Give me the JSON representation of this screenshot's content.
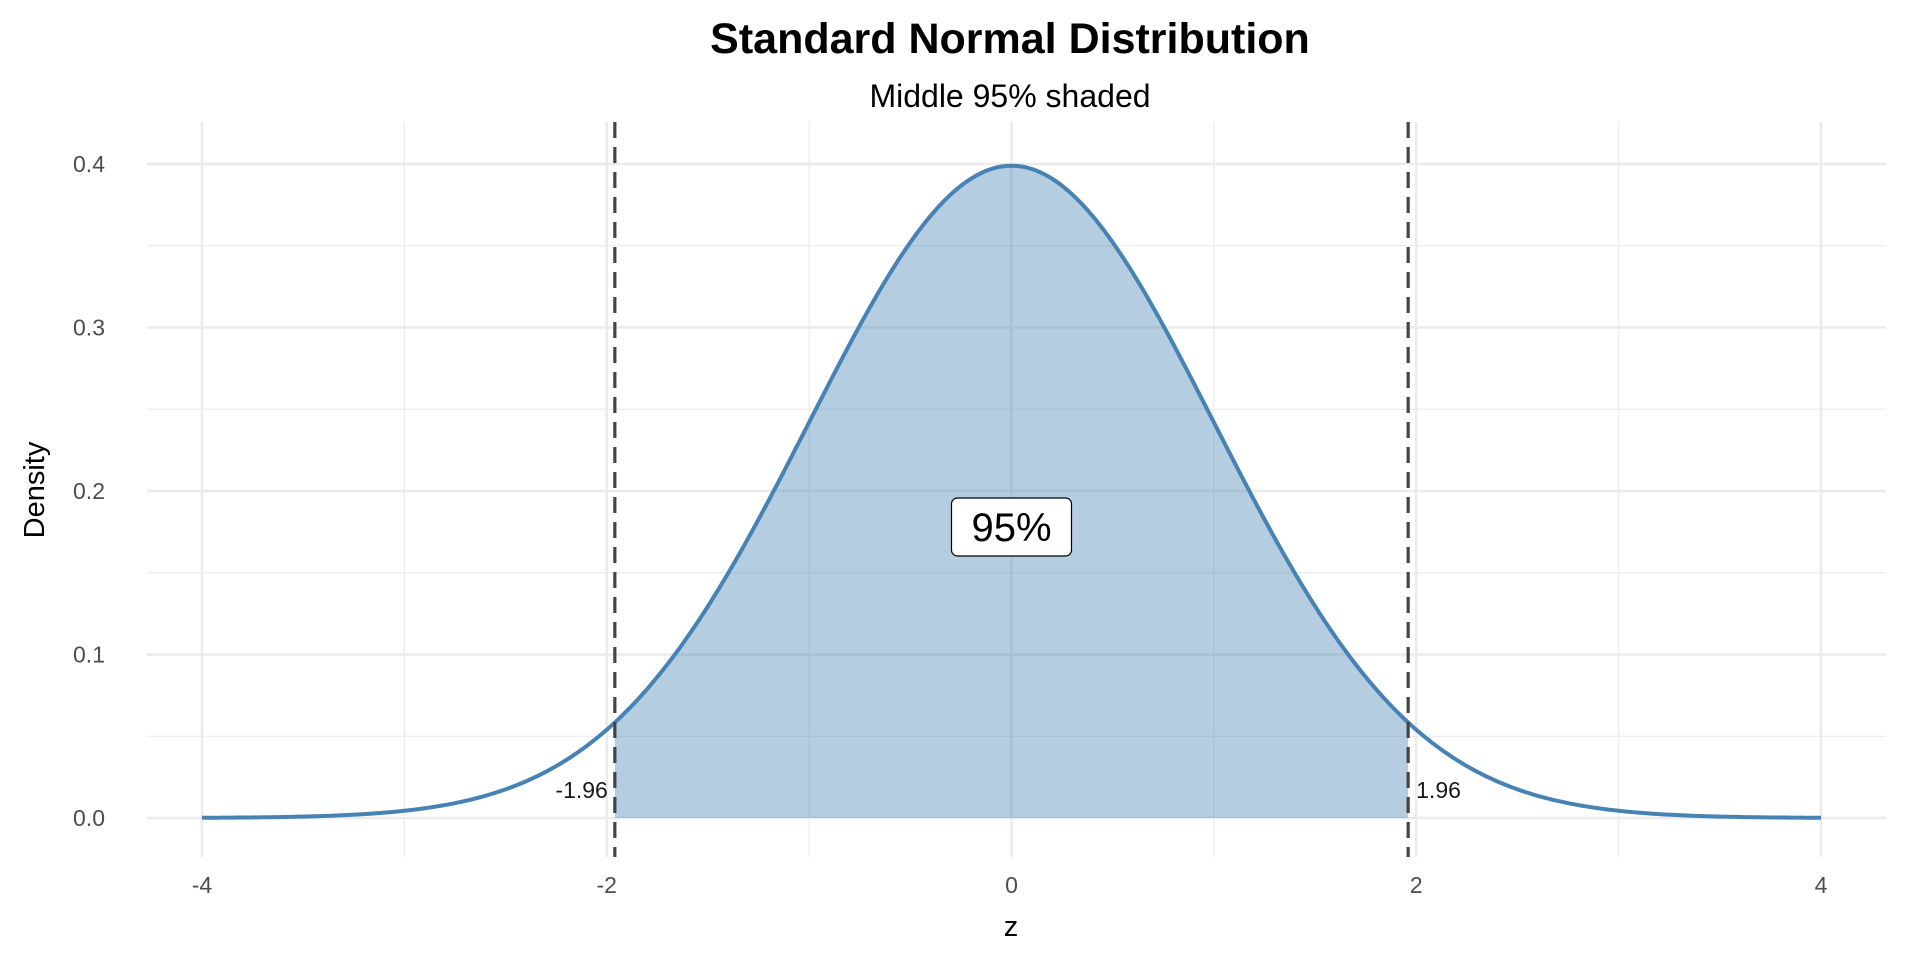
{
  "chart_data": {
    "type": "area",
    "title": "Standard Normal Distribution",
    "subtitle": "Middle 95% shaded",
    "xlabel": "z",
    "ylabel": "Density",
    "xlim": [
      -4,
      4
    ],
    "ylim": [
      0,
      0.4
    ],
    "x_ticks": [
      -4,
      -2,
      0,
      2,
      4
    ],
    "x_tick_labels": [
      "-4",
      "-2",
      "0",
      "2",
      "4"
    ],
    "y_ticks": [
      0,
      0.1,
      0.2,
      0.3,
      0.4
    ],
    "y_tick_labels": [
      "0.0",
      "0.1",
      "0.2",
      "0.3",
      "0.4"
    ],
    "grid": true,
    "series": [
      {
        "name": "Standard normal density",
        "function": "dnorm(z, 0, 1)",
        "x_range": [
          -4,
          4
        ],
        "color": "#4682B4"
      }
    ],
    "shaded_region": {
      "from": -1.96,
      "to": 1.96,
      "color": "#4682B4",
      "opacity": 0.4
    },
    "critical_lines": [
      {
        "z": -1.96,
        "label": "-1.96",
        "style": "dashed",
        "color": "#444444"
      },
      {
        "z": 1.96,
        "label": "1.96",
        "style": "dashed",
        "color": "#444444"
      }
    ],
    "annotation": {
      "text": "95%",
      "x": 0,
      "y": 0.178
    }
  }
}
